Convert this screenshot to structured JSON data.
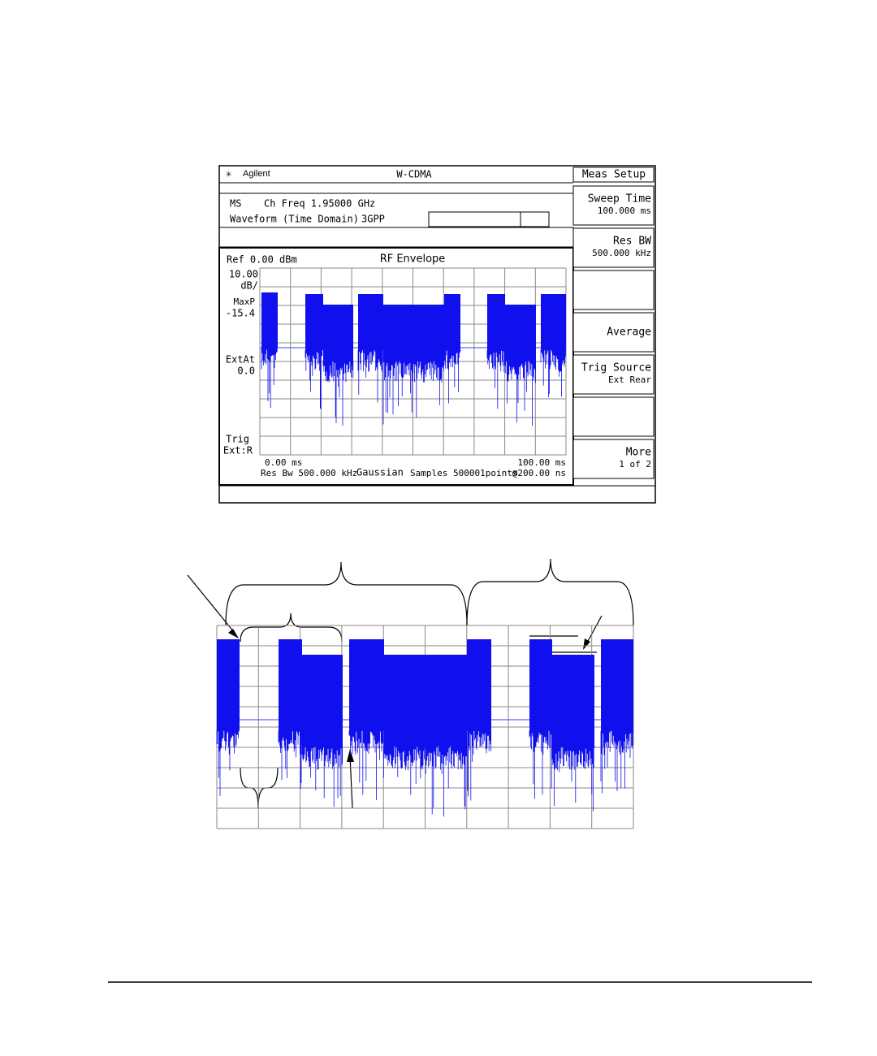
{
  "header": {
    "brand": "Agilent",
    "mode": "W-CDMA"
  },
  "info": {
    "line1a": "MS",
    "line1b": "Ch Freq 1.95000 GHz",
    "line2a": "Waveform (Time Domain)",
    "line2b": "3GPP"
  },
  "menu": {
    "title": "Meas Setup",
    "keys": [
      {
        "label": "Sweep Time",
        "value": "100.000 ms"
      },
      {
        "label": "Res BW",
        "value": "500.000 kHz"
      },
      {
        "label": "Average"
      },
      {
        "label": "Trig Source",
        "value": "Ext Rear"
      },
      {
        "label": "More",
        "value": "1 of 2"
      }
    ]
  },
  "plot": {
    "ref": "Ref 0.00 dBm",
    "title": "RF Envelope",
    "scale": "10.00",
    "scale_unit": "dB/",
    "maxp_label": "MaxP",
    "maxp_value": "-15.4",
    "extat_label": "ExtAt",
    "extat_value": "0.0",
    "trig_label": "Trig",
    "trig_value": "Ext:R",
    "x_start": "0.00 ms",
    "x_stop": "100.00 ms",
    "res_bw": "Res Bw 500.000 kHz",
    "filter": "Gaussian",
    "samples": "Samples 500001points",
    "interval": "@200.00 ns"
  }
}
